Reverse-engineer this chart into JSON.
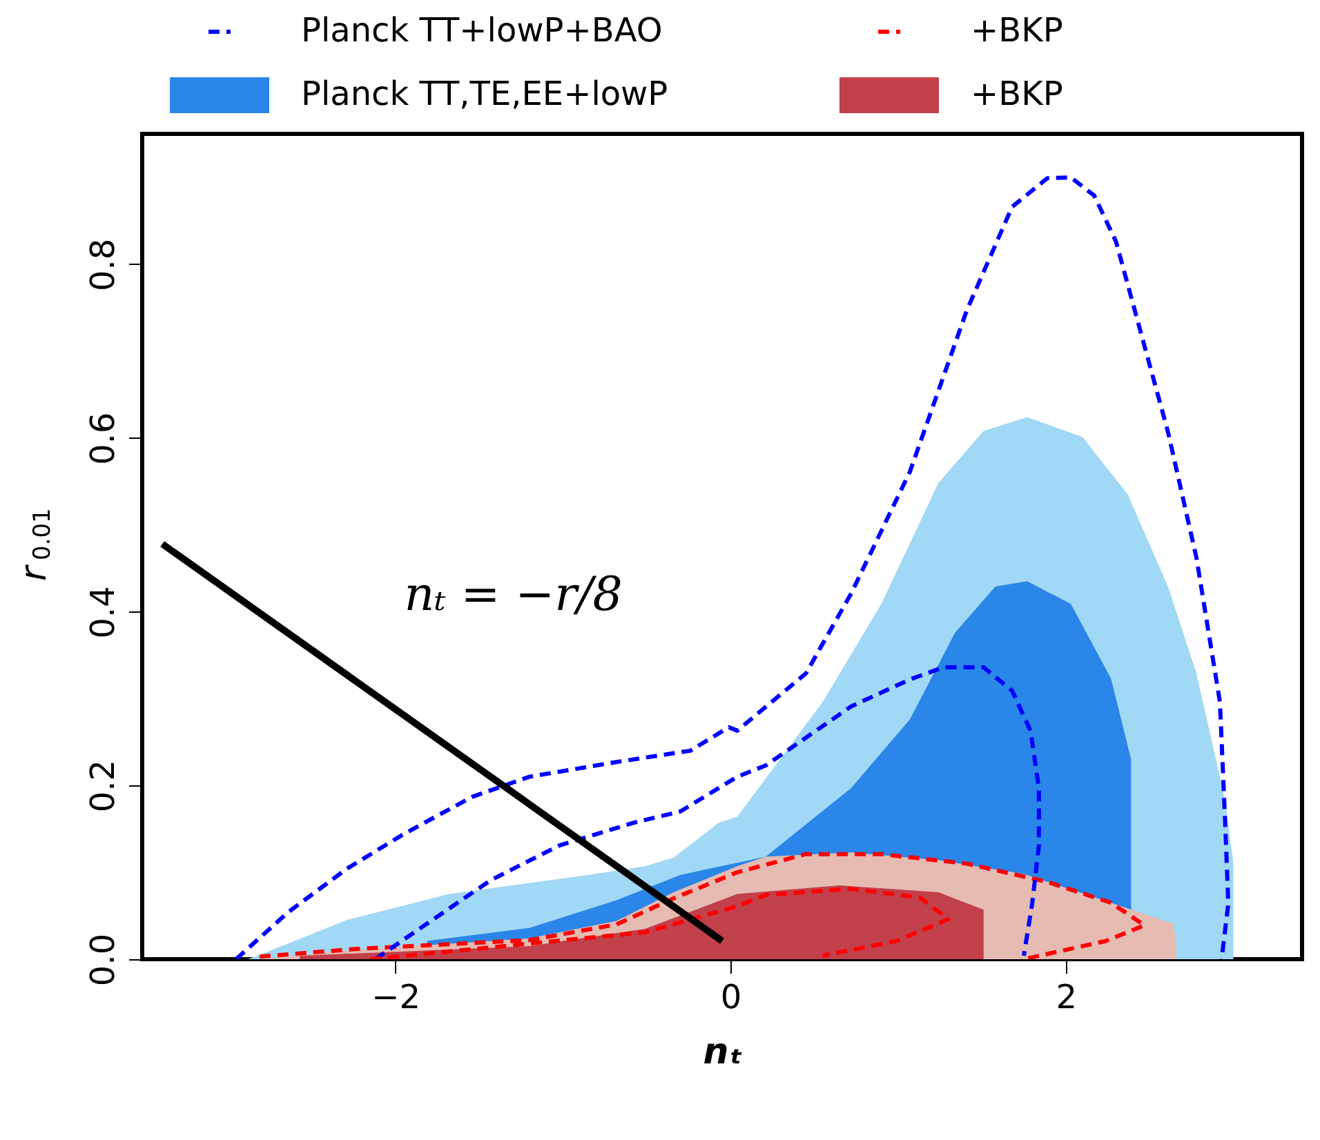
{
  "chart_data": {
    "type": "line",
    "xlabel": "nₜ",
    "ylabel": "r$_{0.01}$",
    "xlim": [
      -3.51,
      3.41
    ],
    "ylim": [
      0,
      0.95
    ],
    "xticks": [
      {
        "value": -2,
        "label": "−2"
      },
      {
        "value": 0,
        "label": "0"
      },
      {
        "value": 2,
        "label": "2"
      }
    ],
    "yticks": [
      {
        "value": 0,
        "label": "0.0"
      },
      {
        "value": 0.2,
        "label": "0.2"
      },
      {
        "value": 0.4,
        "label": "0.4"
      },
      {
        "value": 0.6,
        "label": "0.6"
      },
      {
        "value": 0.8,
        "label": "0.8"
      }
    ],
    "grid": false,
    "legend": "top",
    "marker": "none",
    "annotations": [
      "nₜ = −r/8"
    ],
    "series": [
      {
        "name": "Planck TT+lowP+BAO",
        "color": "#0000ff",
        "line_style": "dashed",
        "x": [
          -2.95,
          -2.64,
          -2.29,
          -1.95,
          -1.54,
          -1.2,
          -0.68,
          -0.24,
          -0.01,
          0.04,
          0.45,
          0.72,
          1.07,
          1.41,
          1.68,
          1.89,
          2.03,
          2.17,
          2.3,
          2.44,
          2.61,
          2.78,
          2.92,
          2.95,
          2.97,
          2.93
        ],
        "values": [
          0,
          0.054,
          0.104,
          0.144,
          0.187,
          0.21,
          0.227,
          0.24,
          0.267,
          0.263,
          0.329,
          0.421,
          0.561,
          0.747,
          0.866,
          0.899,
          0.9,
          0.879,
          0.826,
          0.727,
          0.607,
          0.462,
          0.296,
          0.163,
          0.064,
          0
        ]
      },
      {
        "name": "+BKP",
        "color": "#ff0000",
        "line_style": "dashed",
        "x": [
          -2.81,
          -2.22,
          -1.2,
          -0.68,
          -0.34,
          0.04,
          0.45,
          0.9,
          1.41,
          1.89,
          2.27,
          2.47,
          2.24,
          1.75
        ],
        "values": [
          0.003,
          0.012,
          0.022,
          0.04,
          0.07,
          0.1,
          0.121,
          0.121,
          0.11,
          0.089,
          0.065,
          0.039,
          0.021,
          0
        ]
      },
      {
        "type": "area",
        "color": "#a1d8f5",
        "x": [
          -2.88,
          -2.81,
          -2.29,
          -1.68,
          -0.85,
          -0.51,
          -0.34,
          -0.07,
          0.04,
          0.55,
          0.9,
          1.24,
          1.51,
          1.77,
          2.1,
          2.37,
          2.61,
          2.78,
          2.95,
          3.0,
          3.0
        ],
        "values": [
          0,
          0.005,
          0.045,
          0.075,
          0.097,
          0.107,
          0.117,
          0.157,
          0.164,
          0.296,
          0.409,
          0.548,
          0.608,
          0.624,
          0.601,
          0.535,
          0.429,
          0.329,
          0.184,
          0.111,
          0
        ]
      },
      {
        "type": "area",
        "name": "Planck TT,TE,EE+lowP",
        "color": "#2a86e8",
        "x": [
          -1.81,
          -1.2,
          -0.68,
          -0.3,
          0.21,
          0.72,
          1.07,
          1.34,
          1.58,
          1.77,
          2.03,
          2.27,
          2.39
        ],
        "values": [
          0.021,
          0.036,
          0.068,
          0.097,
          0.118,
          0.197,
          0.276,
          0.376,
          0.429,
          0.435,
          0.409,
          0.323,
          0.23
        ]
      },
      {
        "type": "area",
        "color": "#e6bbb2",
        "x": [
          -2.81,
          -2.22,
          -1.2,
          -0.68,
          -0.34,
          0.04,
          0.21,
          0.72,
          1.24,
          1.75,
          2.27,
          2.64,
          2.66
        ],
        "values": [
          0,
          0.011,
          0.024,
          0.044,
          0.077,
          0.107,
          0.118,
          0.123,
          0.114,
          0.098,
          0.065,
          0.041,
          0.02
        ]
      },
      {
        "type": "area",
        "name": "+BKP",
        "color": "#c1404a",
        "x": [
          -2.57,
          -1.2,
          -0.51,
          0.04,
          0.65,
          1.24,
          1.51
        ],
        "values": [
          0.004,
          0.015,
          0.035,
          0.075,
          0.085,
          0.077,
          0.057
        ]
      },
      {
        "color": "#0000ff",
        "line_style": "dashed",
        "x": [
          -2.12,
          -1.78,
          -1.43,
          -1.02,
          -0.58,
          -0.3,
          0.04,
          0.21,
          0.72,
          1.07,
          1.27,
          1.51,
          1.68,
          1.79,
          1.84,
          1.84,
          1.8,
          1.75
        ],
        "values": [
          0,
          0.045,
          0.091,
          0.131,
          0.157,
          0.17,
          0.21,
          0.223,
          0.291,
          0.322,
          0.336,
          0.336,
          0.309,
          0.263,
          0.197,
          0.131,
          0.064,
          0.004
        ]
      },
      {
        "color": "#ff0000",
        "line_style": "dashed",
        "x": [
          -2.15,
          -1.2,
          -0.51,
          0.04,
          0.21,
          0.72,
          1.13,
          1.3,
          0.99,
          0.55
        ],
        "values": [
          0,
          0.018,
          0.031,
          0.061,
          0.074,
          0.081,
          0.071,
          0.046,
          0.021,
          0.004
        ]
      },
      {
        "color": "#000000",
        "line_style": "solid",
        "x": [
          -3.39,
          -0.05
        ],
        "values": [
          0.478,
          0.021
        ]
      }
    ]
  }
}
